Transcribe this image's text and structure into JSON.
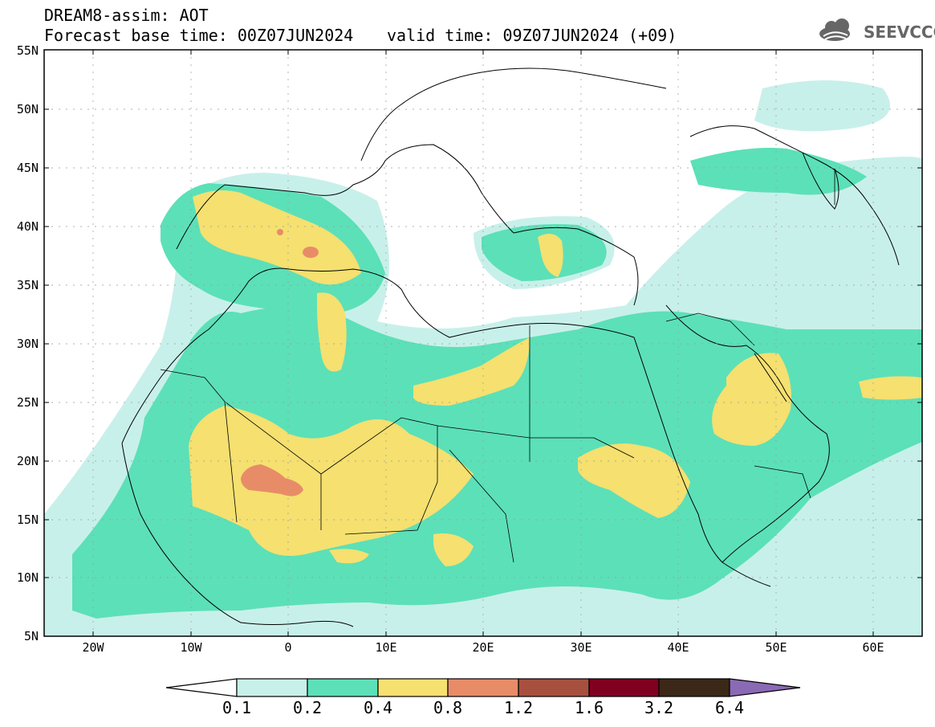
{
  "header": {
    "title_line1": "DREAM8-assim: AOT",
    "title_line2": "Forecast base time: 00Z07JUN2024",
    "title_line2b": "valid time: 09Z07JUN2024 (+09)",
    "logo_text": "SEEVCCC",
    "logo_icon": "cloud-logo-icon"
  },
  "map": {
    "lon_labels": [
      "20W",
      "10W",
      "0",
      "10E",
      "20E",
      "30E",
      "40E",
      "50E",
      "60E"
    ],
    "lat_labels": [
      "55N",
      "50N",
      "45N",
      "40N",
      "35N",
      "30N",
      "25N",
      "20N",
      "15N",
      "10N",
      "5N"
    ]
  },
  "colorbar": {
    "labels": [
      "0.1",
      "0.2",
      "0.4",
      "0.8",
      "1.2",
      "1.6",
      "3.2",
      "6.4"
    ],
    "colors": [
      "#c8f0ea",
      "#5ce0b8",
      "#f5e070",
      "#e88c68",
      "#a85040",
      "#800020",
      "#3c2818",
      "#8a6ab4"
    ]
  }
}
